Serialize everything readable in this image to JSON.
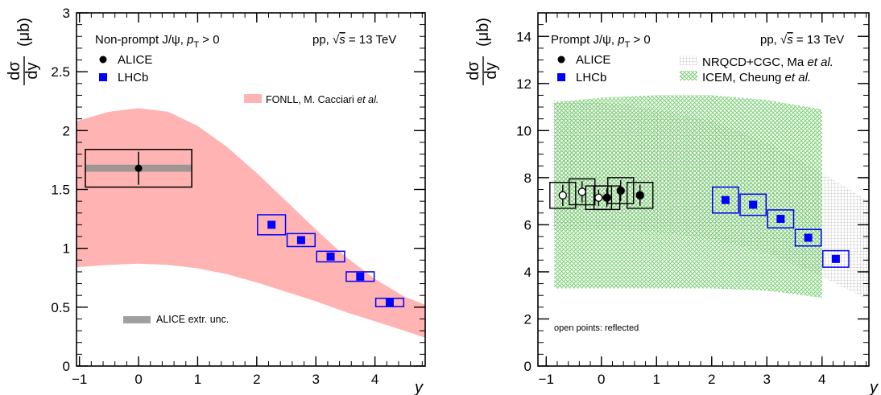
{
  "chart_data": [
    {
      "type": "scatter",
      "panel": "non-prompt",
      "ylabel": "dσ/dy (μb)",
      "xlabel": "y",
      "xlim": [
        -1.05,
        4.85
      ],
      "ylim": [
        0,
        3
      ],
      "xticks": [
        -1,
        0,
        1,
        2,
        3,
        4
      ],
      "yticks": [
        0,
        0.5,
        1,
        1.5,
        2,
        2.5,
        3
      ],
      "annotation_left": "Non-prompt J/ψ, p_T > 0",
      "annotation_right": "pp, √s = 13 TeV",
      "legend": {
        "alice": "ALICE",
        "lhcb": "LHCb",
        "fonll": "FONLL, M. Cacciari et al.",
        "extr": "ALICE extr. unc."
      },
      "fonll_band": {
        "x": [
          -1.05,
          -0.5,
          0,
          0.5,
          1,
          1.5,
          2,
          2.5,
          3,
          3.5,
          4,
          4.5,
          4.85
        ],
        "upper": [
          2.08,
          2.16,
          2.19,
          2.16,
          2.04,
          1.86,
          1.64,
          1.4,
          1.16,
          0.93,
          0.74,
          0.59,
          0.52
        ],
        "lower": [
          0.84,
          0.86,
          0.87,
          0.86,
          0.83,
          0.78,
          0.71,
          0.63,
          0.55,
          0.46,
          0.38,
          0.3,
          0.24
        ]
      },
      "alice_points": [
        {
          "x": 0,
          "y": 1.68,
          "stat": 0.14,
          "syst": 0.16,
          "extr": 0.03,
          "xhalf": 0.9
        }
      ],
      "lhcb_points": [
        {
          "x": 2.25,
          "y": 1.2,
          "syst": 0.085
        },
        {
          "x": 2.75,
          "y": 1.07,
          "syst": 0.055
        },
        {
          "x": 3.25,
          "y": 0.93,
          "syst": 0.045
        },
        {
          "x": 3.75,
          "y": 0.76,
          "syst": 0.04
        },
        {
          "x": 4.25,
          "y": 0.54,
          "syst": 0.035
        }
      ]
    },
    {
      "type": "scatter",
      "panel": "prompt",
      "ylabel": "dσ/dy (μb)",
      "xlabel": "y",
      "xlim": [
        -1.15,
        4.85
      ],
      "ylim": [
        0,
        15
      ],
      "xticks": [
        -1,
        0,
        1,
        2,
        3,
        4
      ],
      "yticks": [
        0,
        2,
        4,
        6,
        8,
        10,
        12,
        14
      ],
      "annotation_left": "Prompt J/ψ, p_T > 0",
      "annotation_right": "pp, √s = 13 TeV",
      "annotation_bottom": "open points: reflected",
      "legend": {
        "alice": "ALICE",
        "lhcb": "LHCb",
        "nrqcd": "NRQCD+CGC, Ma et al.",
        "icem": "ICEM, Cheung et al."
      },
      "nrqcd_band": {
        "x": [
          -0.9,
          0,
          1,
          2,
          3,
          4,
          4.85
        ],
        "upper": [
          11.3,
          11.2,
          10.9,
          10.4,
          9.5,
          8.2,
          7.0
        ],
        "lower": [
          5.8,
          5.8,
          5.7,
          5.4,
          4.8,
          3.8,
          2.8
        ]
      },
      "icem_band": {
        "x": [
          -0.85,
          0,
          1,
          2,
          3,
          4,
          4.0
        ],
        "upper": [
          11.2,
          11.4,
          11.5,
          11.5,
          11.3,
          10.9,
          10.9
        ],
        "lower": [
          3.3,
          3.3,
          3.3,
          3.3,
          3.2,
          2.9,
          2.9
        ]
      },
      "alice_points": [
        {
          "x": -0.7,
          "y": 7.25,
          "stat": 0.45,
          "syst": 0.55,
          "open": true
        },
        {
          "x": -0.35,
          "y": 7.4,
          "stat": 0.45,
          "syst": 0.55,
          "open": true
        },
        {
          "x": -0.05,
          "y": 7.15,
          "stat": 0.35,
          "syst": 0.5,
          "open": true
        },
        {
          "x": 0.1,
          "y": 7.15,
          "stat": 0.4,
          "syst": 0.5,
          "open": false
        },
        {
          "x": 0.35,
          "y": 7.45,
          "stat": 0.45,
          "syst": 0.55,
          "open": false
        },
        {
          "x": 0.7,
          "y": 7.25,
          "stat": 0.45,
          "syst": 0.55,
          "open": false
        }
      ],
      "lhcb_points": [
        {
          "x": 2.25,
          "y": 7.05,
          "syst": 0.55
        },
        {
          "x": 2.75,
          "y": 6.85,
          "syst": 0.45
        },
        {
          "x": 3.25,
          "y": 6.25,
          "syst": 0.38
        },
        {
          "x": 3.75,
          "y": 5.45,
          "syst": 0.35
        },
        {
          "x": 4.25,
          "y": 4.55,
          "syst": 0.35
        }
      ]
    }
  ]
}
